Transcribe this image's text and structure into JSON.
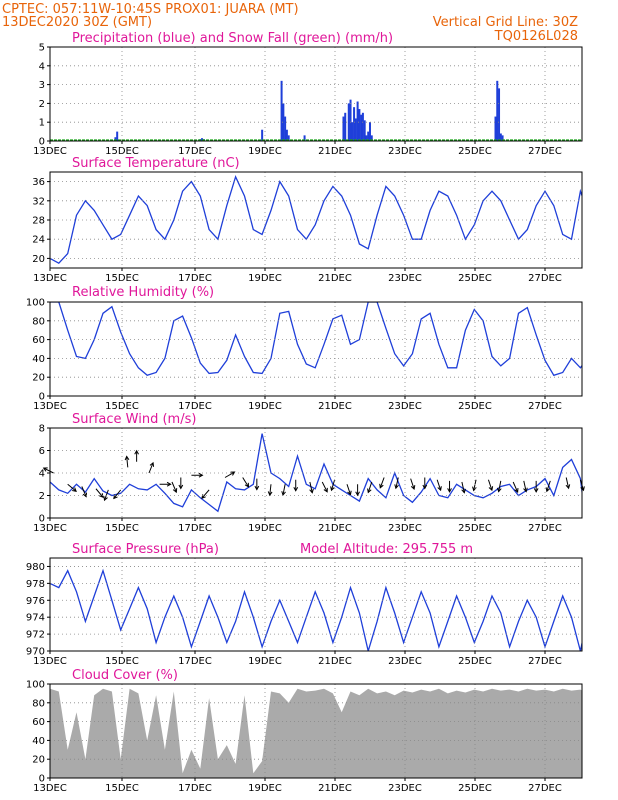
{
  "header": {
    "line1": "CPTEC:  057:11W-10:45S  PROX01: JUARA (MT)",
    "line2": "13DEC2020 30Z (GMT)",
    "grid_note": "Vertical Grid Line: 30Z",
    "code": "TQ0126L028"
  },
  "colors": {
    "header": "#e8640a",
    "title": "#e0179a",
    "line": "#1f3fd9",
    "precip": "#1f3fd9",
    "snow": "#19a319",
    "cloud": "#aaaaaa"
  },
  "chart_data": [
    {
      "type": "bar",
      "id": "precip",
      "title": "Precipitation (blue) and Snow Fall (green) (mm/h)",
      "x_start": "13DEC",
      "x_tick_labels": [
        "13DEC",
        "15DEC",
        "17DEC",
        "19DEC",
        "21DEC",
        "23DEC",
        "25DEC",
        "27DEC"
      ],
      "x_range_days": [
        0,
        15.1
      ],
      "ylim": [
        0,
        5
      ],
      "yticks": [
        0,
        1,
        2,
        3,
        4,
        5
      ],
      "grid": true,
      "series": [
        {
          "name": "Precipitation",
          "x_days": [
            1.85,
            1.9,
            4.25,
            4.3,
            4.35,
            6.0,
            6.55,
            6.6,
            6.65,
            6.7,
            6.75,
            7.2,
            8.3,
            8.35,
            8.45,
            8.5,
            8.55,
            8.6,
            8.65,
            8.7,
            8.75,
            8.8,
            8.85,
            8.9,
            8.95,
            9.0,
            9.05,
            9.1,
            12.6,
            12.65,
            12.7,
            12.75,
            12.8
          ],
          "values": [
            0.2,
            0.5,
            0.1,
            0.15,
            0.1,
            0.6,
            3.2,
            2.0,
            1.3,
            0.6,
            0.3,
            0.3,
            1.3,
            1.5,
            2.0,
            2.2,
            1.0,
            1.8,
            1.2,
            2.1,
            1.7,
            1.4,
            1.5,
            1.1,
            0.3,
            0.5,
            1.0,
            0.3,
            1.3,
            3.2,
            2.8,
            0.4,
            0.3
          ]
        },
        {
          "name": "Snow Fall",
          "values_constant": 0
        }
      ]
    },
    {
      "type": "line",
      "id": "temperature",
      "title": "Surface Temperature (nC)",
      "x_tick_labels": [
        "13DEC",
        "15DEC",
        "17DEC",
        "19DEC",
        "21DEC",
        "23DEC",
        "25DEC",
        "27DEC"
      ],
      "x_range_days": [
        0,
        15.1
      ],
      "ylim": [
        18,
        38
      ],
      "yticks": [
        20,
        24,
        28,
        32,
        36
      ],
      "grid": true,
      "x_days": [
        0,
        0.25,
        0.5,
        0.75,
        1.0,
        1.25,
        1.5,
        1.75,
        2.0,
        2.25,
        2.5,
        2.75,
        3.0,
        3.25,
        3.5,
        3.75,
        4.0,
        4.25,
        4.5,
        4.75,
        5.0,
        5.25,
        5.5,
        5.75,
        6.0,
        6.25,
        6.5,
        6.75,
        7.0,
        7.25,
        7.5,
        7.75,
        8.0,
        8.25,
        8.5,
        8.75,
        9.0,
        9.25,
        9.5,
        9.75,
        10.0,
        10.25,
        10.5,
        10.75,
        11.0,
        11.25,
        11.5,
        11.75,
        12.0,
        12.25,
        12.5,
        12.75,
        13.0,
        13.25,
        13.5,
        13.75,
        14.0,
        14.25,
        14.5,
        14.75,
        15.0,
        15.1
      ],
      "values": [
        20,
        19,
        21,
        29,
        32,
        30,
        27,
        24,
        25,
        29,
        33,
        31,
        26,
        24,
        28,
        34,
        36,
        33,
        26,
        24,
        31,
        37,
        33,
        26,
        25,
        30,
        36,
        33,
        26,
        24,
        27,
        32,
        35,
        33,
        29,
        23,
        22,
        29,
        35,
        33,
        29,
        24,
        24,
        30,
        34,
        33,
        29,
        24,
        27,
        32,
        34,
        32,
        28,
        24,
        26,
        31,
        34,
        31,
        25,
        24,
        34,
        32
      ]
    },
    {
      "type": "line",
      "id": "humidity",
      "title": "Relative Humidity (%)",
      "x_tick_labels": [
        "13DEC",
        "15DEC",
        "17DEC",
        "19DEC",
        "21DEC",
        "23DEC",
        "25DEC",
        "27DEC"
      ],
      "x_range_days": [
        0,
        15.1
      ],
      "ylim": [
        0,
        100
      ],
      "yticks": [
        0,
        20,
        40,
        60,
        80,
        100
      ],
      "grid": true,
      "x_days": [
        0,
        0.25,
        0.5,
        0.75,
        1.0,
        1.25,
        1.5,
        1.75,
        2.0,
        2.25,
        2.5,
        2.75,
        3.0,
        3.25,
        3.5,
        3.75,
        4.0,
        4.25,
        4.5,
        4.75,
        5.0,
        5.25,
        5.5,
        5.75,
        6.0,
        6.25,
        6.5,
        6.75,
        7.0,
        7.25,
        7.5,
        7.75,
        8.0,
        8.25,
        8.5,
        8.75,
        9.0,
        9.25,
        9.5,
        9.75,
        10.0,
        10.25,
        10.5,
        10.75,
        11.0,
        11.25,
        11.5,
        11.75,
        12.0,
        12.25,
        12.5,
        12.75,
        13.0,
        13.25,
        13.5,
        13.75,
        14.0,
        14.25,
        14.5,
        14.75,
        15.0,
        15.1
      ],
      "values": [
        100,
        100,
        70,
        42,
        40,
        60,
        88,
        95,
        68,
        45,
        30,
        22,
        25,
        40,
        80,
        85,
        62,
        35,
        24,
        25,
        38,
        65,
        42,
        25,
        24,
        40,
        88,
        90,
        55,
        34,
        30,
        55,
        82,
        86,
        55,
        60,
        100,
        100,
        72,
        45,
        32,
        45,
        82,
        88,
        55,
        30,
        30,
        70,
        92,
        80,
        42,
        32,
        40,
        88,
        94,
        65,
        38,
        22,
        25,
        40,
        30,
        35
      ]
    },
    {
      "type": "line",
      "id": "wind",
      "title": "Surface Wind (m/s)",
      "x_tick_labels": [
        "13DEC",
        "15DEC",
        "17DEC",
        "19DEC",
        "21DEC",
        "23DEC",
        "25DEC",
        "27DEC"
      ],
      "x_range_days": [
        0,
        15.1
      ],
      "ylim": [
        0,
        8
      ],
      "yticks": [
        0,
        2,
        4,
        6,
        8
      ],
      "grid": true,
      "x_days": [
        0,
        0.25,
        0.5,
        0.75,
        1.0,
        1.25,
        1.5,
        1.75,
        2.0,
        2.25,
        2.5,
        2.75,
        3.0,
        3.25,
        3.5,
        3.75,
        4.0,
        4.25,
        4.5,
        4.75,
        5.0,
        5.25,
        5.5,
        5.75,
        6.0,
        6.25,
        6.5,
        6.75,
        7.0,
        7.25,
        7.5,
        7.75,
        8.0,
        8.25,
        8.5,
        8.75,
        9.0,
        9.25,
        9.5,
        9.75,
        10.0,
        10.25,
        10.5,
        10.75,
        11.0,
        11.25,
        11.5,
        11.75,
        12.0,
        12.25,
        12.5,
        12.75,
        13.0,
        13.25,
        13.5,
        13.75,
        14.0,
        14.25,
        14.5,
        14.75,
        15.0,
        15.1
      ],
      "values": [
        3.2,
        2.5,
        2.2,
        3.0,
        2.3,
        3.5,
        2.4,
        2.0,
        2.2,
        3.0,
        2.6,
        2.5,
        3.0,
        2.2,
        1.3,
        1.0,
        2.5,
        1.8,
        1.2,
        0.6,
        3.2,
        2.6,
        2.5,
        3.0,
        7.5,
        4.0,
        3.5,
        2.8,
        5.5,
        3.0,
        2.6,
        4.8,
        3.0,
        2.5,
        2.0,
        1.5,
        3.5,
        2.5,
        1.8,
        4.0,
        2.0,
        1.4,
        2.3,
        3.5,
        2.0,
        1.8,
        3.0,
        2.5,
        2.0,
        1.8,
        2.2,
        2.8,
        3.0,
        2.0,
        2.5,
        2.8,
        3.5,
        2.0,
        4.5,
        5.2,
        3.5,
        1.0
      ]
    },
    {
      "type": "line",
      "id": "pressure",
      "title": "Surface Pressure (hPa)",
      "annotation": "Model Altitude: 295.755  m",
      "x_tick_labels": [
        "13DEC",
        "15DEC",
        "17DEC",
        "19DEC",
        "21DEC",
        "23DEC",
        "25DEC",
        "27DEC"
      ],
      "x_range_days": [
        0,
        15.1
      ],
      "ylim": [
        970,
        981
      ],
      "yticks": [
        970,
        972,
        974,
        976,
        978,
        980
      ],
      "grid": true,
      "x_days": [
        0,
        0.25,
        0.5,
        0.75,
        1.0,
        1.25,
        1.5,
        1.75,
        2.0,
        2.25,
        2.5,
        2.75,
        3.0,
        3.25,
        3.5,
        3.75,
        4.0,
        4.25,
        4.5,
        4.75,
        5.0,
        5.25,
        5.5,
        5.75,
        6.0,
        6.25,
        6.5,
        6.75,
        7.0,
        7.25,
        7.5,
        7.75,
        8.0,
        8.25,
        8.5,
        8.75,
        9.0,
        9.25,
        9.5,
        9.75,
        10.0,
        10.25,
        10.5,
        10.75,
        11.0,
        11.25,
        11.5,
        11.75,
        12.0,
        12.25,
        12.5,
        12.75,
        13.0,
        13.25,
        13.5,
        13.75,
        14.0,
        14.25,
        14.5,
        14.75,
        15.0,
        15.1
      ],
      "values": [
        978,
        977.5,
        979.5,
        977,
        973.5,
        976.5,
        979.5,
        976,
        972.5,
        975,
        977.5,
        975,
        971,
        974,
        976.5,
        974,
        970.5,
        973.5,
        976.5,
        974,
        971,
        973.5,
        977,
        974,
        970.5,
        973.5,
        976,
        973.5,
        971,
        974,
        977,
        974.5,
        971,
        974,
        977.5,
        974.5,
        970,
        973.5,
        977.5,
        974.5,
        971,
        974,
        977,
        974.5,
        970.5,
        973.5,
        976.5,
        974,
        971,
        973.5,
        976.5,
        974.5,
        970.5,
        973.5,
        976,
        974,
        970.5,
        973.5,
        976.5,
        974,
        970,
        972
      ]
    },
    {
      "type": "area",
      "id": "cloud",
      "title": "Cloud Cover (%)",
      "x_tick_labels": [
        "13DEC",
        "15DEC",
        "17DEC",
        "19DEC",
        "21DEC",
        "23DEC",
        "25DEC",
        "27DEC"
      ],
      "x_range_days": [
        0,
        15.1
      ],
      "ylim": [
        0,
        100
      ],
      "yticks": [
        0,
        20,
        40,
        60,
        80,
        100
      ],
      "grid": true,
      "x_days": [
        0,
        0.25,
        0.5,
        0.75,
        1.0,
        1.25,
        1.5,
        1.75,
        2.0,
        2.25,
        2.5,
        2.75,
        3.0,
        3.25,
        3.5,
        3.75,
        4.0,
        4.25,
        4.5,
        4.75,
        5.0,
        5.25,
        5.5,
        5.75,
        6.0,
        6.25,
        6.5,
        6.75,
        7.0,
        7.25,
        7.5,
        7.75,
        8.0,
        8.25,
        8.5,
        8.75,
        9.0,
        9.25,
        9.5,
        9.75,
        10.0,
        10.25,
        10.5,
        10.75,
        11.0,
        11.25,
        11.5,
        11.75,
        12.0,
        12.25,
        12.5,
        12.75,
        13.0,
        13.25,
        13.5,
        13.75,
        14.0,
        14.25,
        14.5,
        14.75,
        15.0,
        15.1
      ],
      "values": [
        95,
        92,
        30,
        70,
        20,
        88,
        95,
        92,
        20,
        95,
        90,
        40,
        88,
        30,
        92,
        5,
        30,
        10,
        85,
        20,
        35,
        15,
        88,
        5,
        18,
        92,
        90,
        80,
        95,
        92,
        93,
        95,
        90,
        70,
        92,
        88,
        95,
        90,
        92,
        88,
        93,
        91,
        94,
        92,
        95,
        90,
        93,
        91,
        94,
        92,
        95,
        93,
        94,
        92,
        95,
        93,
        94,
        92,
        95,
        93,
        94,
        92
      ]
    },
    {
      "type": "quiver",
      "id": "wind_arrows",
      "note": "wind direction arrows overlaid on Surface Wind panel",
      "x_days": [
        0.1,
        0.5,
        0.9,
        1.3,
        1.65,
        2.0,
        2.2,
        2.45,
        2.8,
        3.1,
        3.45,
        3.7,
        4.0,
        4.5,
        4.95,
        5.45,
        5.85,
        6.25,
        6.65,
        6.95,
        7.35,
        7.7,
        8.05,
        8.4,
        8.7,
        9.1,
        9.45,
        9.85,
        10.2,
        10.6,
        10.95,
        11.3,
        11.65,
        12.05,
        12.4,
        12.75,
        13.1,
        13.4,
        13.75,
        14.15,
        14.6,
        15.0
      ],
      "wind_y": [
        4.0,
        3.0,
        2.8,
        2.6,
        2.5,
        2.5,
        4.5,
        5.0,
        4.0,
        3.0,
        3.2,
        3.6,
        3.8,
        2.5,
        3.6,
        3.6,
        3.5,
        3.0,
        3.0,
        3.4,
        3.2,
        3.2,
        3.4,
        3.0,
        3.0,
        3.2,
        3.6,
        3.6,
        3.5,
        3.6,
        3.4,
        3.3,
        3.2,
        3.4,
        3.4,
        3.3,
        3.2,
        3.3,
        3.3,
        3.3,
        3.6,
        3.4
      ],
      "dx": [
        -1,
        0.6,
        0.3,
        0.5,
        -0.3,
        -0.4,
        -0.1,
        0.0,
        0.2,
        0.4,
        0.3,
        0.0,
        1.0,
        -0.6,
        0.7,
        0.5,
        0.0,
        -0.1,
        -0.2,
        0.0,
        0.2,
        0.4,
        -0.3,
        0.3,
        0.0,
        -0.3,
        -0.3,
        -0.2,
        0.3,
        0.0,
        0.3,
        0.0,
        0.2,
        -0.2,
        0.3,
        -0.2,
        0.4,
        0.2,
        0.0,
        -0.3,
        0.2,
        0.3
      ],
      "dy": [
        0.5,
        -0.5,
        -0.7,
        -0.6,
        -0.8,
        -0.5,
        1.0,
        1.0,
        0.5,
        0.0,
        -0.7,
        -1.0,
        0.0,
        -0.7,
        0.4,
        -0.8,
        -1.0,
        -0.9,
        -1.0,
        -0.9,
        -0.9,
        -0.8,
        -1.0,
        -0.9,
        -1.0,
        -0.9,
        -0.8,
        -0.9,
        -0.9,
        -1.0,
        -0.9,
        -1.0,
        -0.9,
        -0.9,
        -0.9,
        -1.0,
        -0.9,
        -0.9,
        -1.0,
        -0.9,
        -0.9,
        -1.0
      ]
    }
  ]
}
